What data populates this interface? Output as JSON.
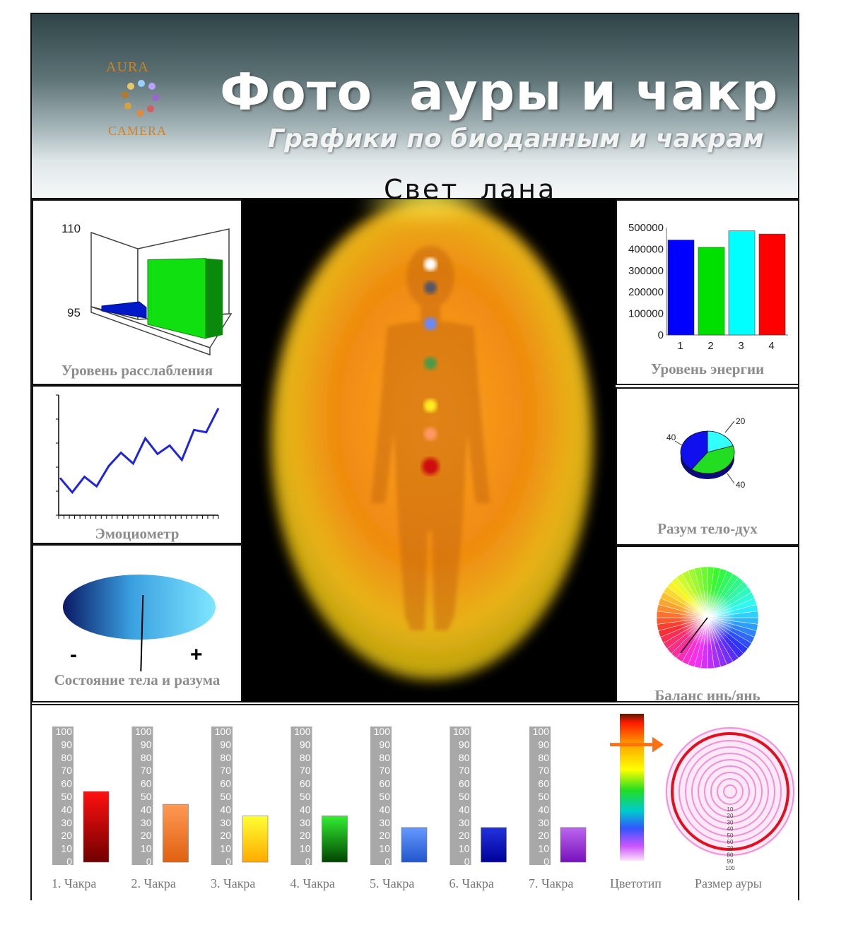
{
  "header": {
    "logo_top": "AURA",
    "logo_bottom": "CAMERA",
    "title": "Фото  ауры и чакр",
    "subtitle": "Графики по биоданным и чакрам",
    "person_name": "Свет  лана"
  },
  "panels": {
    "relaxation": {
      "label": "Уровень расслабления",
      "tick_top": "110",
      "tick_bottom": "95",
      "bars": [
        {
          "value": 96.5,
          "color": "#0a18d8"
        },
        {
          "value": 106.5,
          "color": "#10e010"
        }
      ]
    },
    "emotiometer": {
      "label": "Эмоциометр",
      "values": [
        3.1,
        1.9,
        3.2,
        2.4,
        4.1,
        5.2,
        4.3,
        6.4,
        5.1,
        5.8,
        4.6,
        7.1,
        6.9,
        8.9
      ]
    },
    "body_mind_state": {
      "label": "Состояние тела и разума",
      "minus": "-",
      "plus": "+",
      "indicator": 0.52
    },
    "energy": {
      "label": "Уровень энергии",
      "chart_data": {
        "type": "bar",
        "categories": [
          "1",
          "2",
          "3",
          "4"
        ],
        "values": [
          442000,
          408000,
          485000,
          470000
        ],
        "ylim": [
          0,
          500000
        ],
        "yticks": [
          "500000",
          "400000",
          "300000",
          "200000",
          "100000",
          "0"
        ],
        "colors": [
          "#0000ff",
          "#00e000",
          "#00ffff",
          "#ff0000"
        ]
      }
    },
    "mind_body_spirit": {
      "label": "Разум тело-дух",
      "chart_data": {
        "type": "pie",
        "slices": [
          {
            "value": 20,
            "label": "20",
            "color": "#33ffff"
          },
          {
            "value": 40,
            "label": "40",
            "color": "#22dd22"
          },
          {
            "value": 40,
            "label": "40",
            "color": "#1010ee"
          }
        ]
      }
    },
    "yin_yang": {
      "label": "Баланс инь/янь"
    }
  },
  "aura_photo": {
    "chakra_colors": [
      "#ffffff",
      "#555566",
      "#6688ff",
      "#4a9a4a",
      "#ffee22",
      "#ff9966",
      "#cc1111"
    ]
  },
  "chakras": {
    "scale": [
      "100",
      "90",
      "80",
      "70",
      "60",
      "50",
      "40",
      "30",
      "20",
      "10",
      "0"
    ],
    "items": [
      {
        "label": "1. Чакра",
        "value": 55,
        "color_top": "#ff1010",
        "color_bot": "#700000"
      },
      {
        "label": "2. Чакра",
        "value": 45,
        "color_top": "#ff9955",
        "color_bot": "#e06010"
      },
      {
        "label": "3. Чакра",
        "value": 36,
        "color_top": "#ffff33",
        "color_bot": "#ffaa00"
      },
      {
        "label": "4. Чакра",
        "value": 36,
        "color_top": "#33ee33",
        "color_bot": "#004400"
      },
      {
        "label": "5. Чакра",
        "value": 27,
        "color_top": "#6699ff",
        "color_bot": "#2255cc"
      },
      {
        "label": "6. Чакра",
        "value": 27,
        "color_top": "#2233dd",
        "color_bot": "#000099"
      },
      {
        "label": "7. Чакра",
        "value": 27,
        "color_top": "#bb66ee",
        "color_bot": "#7711bb"
      }
    ],
    "colortype_label": "Цветотип",
    "colortype_level": 0.79,
    "aura_size_label": "Размер ауры",
    "aura_size_scale": [
      "10",
      "20",
      "30",
      "40",
      "50",
      "60",
      "70",
      "80",
      "90",
      "100"
    ]
  }
}
